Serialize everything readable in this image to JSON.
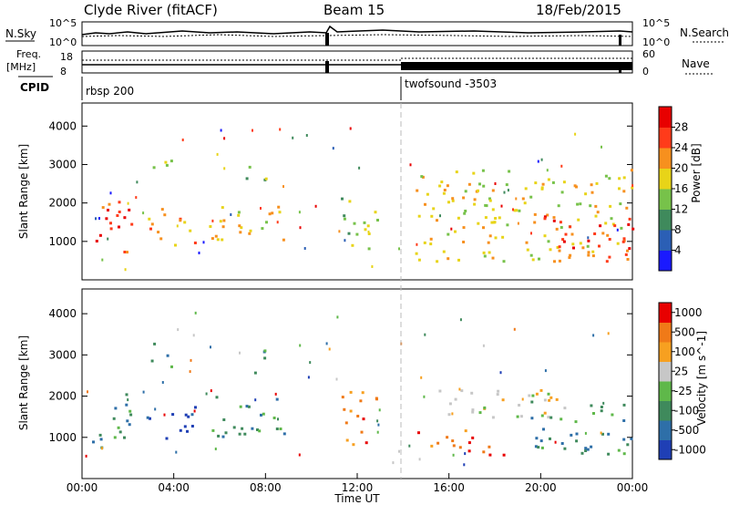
{
  "header": {
    "station": "Clyde River (fitACF)",
    "beam": "Beam 15",
    "date": "18/Feb/2015"
  },
  "top_panels": {
    "nsky_label": "N.Sky",
    "nsky_ticks": [
      "10^5",
      "10^0"
    ],
    "nsearch_label": "N.Search",
    "nsearch_ticks": [
      "10^5",
      "10^0"
    ],
    "freq_label": "Freq.",
    "freq_unit": "[MHz]",
    "freq_ticks": [
      "18",
      "8"
    ],
    "nave_label": "Nave",
    "nave_ticks": [
      "60",
      "0"
    ],
    "cpid_label": "CPID",
    "cpid_segments": [
      {
        "name": "rbsp 200",
        "start_hr": 0,
        "end_hr": 14
      },
      {
        "name": "twofsound -3503",
        "start_hr": 14,
        "end_hr": 24
      }
    ]
  },
  "chart_data": [
    {
      "type": "heatmap",
      "title": "",
      "xlabel": "",
      "ylabel": "Slant Range [km]",
      "xlim": [
        0,
        24
      ],
      "ylim": [
        0,
        4600
      ],
      "yticks": [
        1000,
        2000,
        3000,
        4000
      ],
      "colorbar_label": "Power [dB]",
      "colorbar_ticks": [
        4,
        8,
        12,
        16,
        20,
        24,
        28
      ],
      "colors": [
        "#1a1aff",
        "#2b5fb5",
        "#3f8a5c",
        "#77c24a",
        "#e8d418",
        "#f7901e",
        "#ff3b1a",
        "#e80000"
      ],
      "regions": [
        {
          "t0": 0.4,
          "t1": 2.2,
          "r0": 700,
          "r1": 2200,
          "level": 6
        },
        {
          "t0": 2.8,
          "t1": 4.9,
          "r0": 900,
          "r1": 1900,
          "level": 5
        },
        {
          "t0": 3.0,
          "t1": 4.0,
          "r0": 2700,
          "r1": 3400,
          "level": 3
        },
        {
          "t0": 5.5,
          "t1": 8.8,
          "r0": 1000,
          "r1": 2100,
          "level": 4
        },
        {
          "t0": 7.1,
          "t1": 8.0,
          "r0": 2500,
          "r1": 3200,
          "level": 3
        },
        {
          "t0": 11.2,
          "t1": 12.9,
          "r0": 800,
          "r1": 2200,
          "level": 3
        },
        {
          "t0": 14.5,
          "t1": 24.0,
          "r0": 500,
          "r1": 2900,
          "level": 4
        },
        {
          "t0": 20.0,
          "t1": 24.0,
          "r0": 500,
          "r1": 1800,
          "level": 6
        }
      ]
    },
    {
      "type": "heatmap",
      "title": "",
      "xlabel": "Time UT",
      "ylabel": "Slant Range [km]",
      "xlim": [
        0,
        24
      ],
      "ylim": [
        0,
        4600
      ],
      "yticks": [
        1000,
        2000,
        3000,
        4000
      ],
      "xticks": [
        "00:00",
        "04:00",
        "08:00",
        "12:00",
        "16:00",
        "20:00",
        "00:00"
      ],
      "colorbar_label": "Velocity [m s^-1]",
      "colorbar_ticks": [
        1000,
        500,
        100,
        25,
        -25,
        -100,
        -500,
        -1000
      ],
      "colors": [
        "#1f3fb5",
        "#2e6fa8",
        "#3f8a5c",
        "#5fb84a",
        "#c7c7c7",
        "#f7a020",
        "#f07a18",
        "#e80000"
      ],
      "regions": [
        {
          "t0": 0.4,
          "t1": 2.2,
          "r0": 700,
          "r1": 2100,
          "level": 2
        },
        {
          "t0": 2.8,
          "t1": 4.9,
          "r0": 1000,
          "r1": 1900,
          "level": 0
        },
        {
          "t0": 3.0,
          "t1": 4.0,
          "r0": 2700,
          "r1": 3400,
          "level": 2
        },
        {
          "t0": 5.5,
          "t1": 8.8,
          "r0": 1000,
          "r1": 2100,
          "level": 2
        },
        {
          "t0": 7.1,
          "t1": 8.0,
          "r0": 2500,
          "r1": 3200,
          "level": 2
        },
        {
          "t0": 11.2,
          "t1": 12.9,
          "r0": 800,
          "r1": 2200,
          "level": 6
        },
        {
          "t0": 14.8,
          "t1": 21.0,
          "r0": 1400,
          "r1": 2200,
          "level": 4
        },
        {
          "t0": 14.5,
          "t1": 18.6,
          "r0": 600,
          "r1": 1200,
          "level": 6
        },
        {
          "t0": 19.5,
          "t1": 24.0,
          "r0": 600,
          "r1": 1900,
          "level": 2
        }
      ]
    }
  ]
}
